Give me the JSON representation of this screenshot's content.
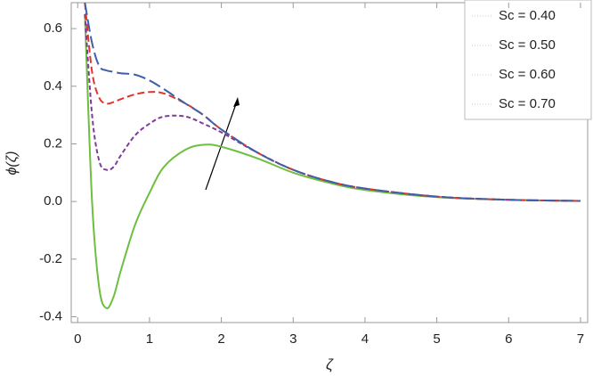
{
  "chart_data": {
    "type": "line",
    "x_label": "ζ",
    "y_label": "ϕ(ζ)",
    "x": [
      0.1,
      0.2,
      0.3,
      0.4,
      0.5,
      0.6,
      0.8,
      1.0,
      1.2,
      1.5,
      1.75,
      2.0,
      2.5,
      3.0,
      3.5,
      4.0,
      5.0,
      6.0,
      7.0
    ],
    "series": [
      {
        "name": "Sc = 0.40",
        "color": "#6cbf3f",
        "dash": "none",
        "values": [
          0.65,
          0.0,
          -0.3,
          -0.37,
          -0.33,
          -0.24,
          -0.08,
          0.03,
          0.12,
          0.18,
          0.197,
          0.19,
          0.15,
          0.1,
          0.065,
          0.04,
          0.015,
          0.006,
          0.002
        ]
      },
      {
        "name": "Sc = 0.50",
        "color": "#7d3c98",
        "dash": "5 3",
        "values": [
          0.65,
          0.3,
          0.14,
          0.11,
          0.12,
          0.16,
          0.23,
          0.27,
          0.295,
          0.295,
          0.27,
          0.24,
          0.17,
          0.11,
          0.07,
          0.045,
          0.017,
          0.006,
          0.002
        ]
      },
      {
        "name": "Sc = 0.60",
        "color": "#e0342d",
        "dash": "8 4",
        "values": [
          0.69,
          0.45,
          0.36,
          0.34,
          0.345,
          0.355,
          0.372,
          0.38,
          0.375,
          0.34,
          0.3,
          0.25,
          0.17,
          0.11,
          0.07,
          0.045,
          0.017,
          0.006,
          0.002
        ]
      },
      {
        "name": "Sc = 0.70",
        "color": "#3f5fa8",
        "dash": "14 5",
        "values": [
          0.69,
          0.55,
          0.47,
          0.455,
          0.45,
          0.445,
          0.44,
          0.42,
          0.39,
          0.34,
          0.3,
          0.25,
          0.17,
          0.11,
          0.07,
          0.045,
          0.017,
          0.006,
          0.002
        ]
      }
    ],
    "xlim": [
      -0.09,
      7.1
    ],
    "xticks": [
      0,
      1,
      2,
      3,
      4,
      5,
      6,
      7
    ],
    "ylim": [
      -0.42,
      0.69
    ],
    "yticks": [
      -0.4,
      -0.2,
      {
        "value": 0,
        "label": "0.0"
      },
      0.2,
      0.4,
      0.6
    ],
    "legend": "top-right"
  }
}
